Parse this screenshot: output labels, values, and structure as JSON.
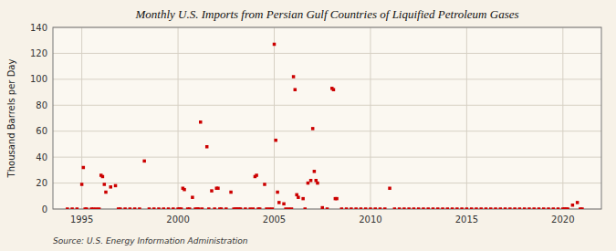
{
  "chart_data": {
    "type": "scatter",
    "title": "Monthly U.S. Imports from Persian Gulf Countries of Liquified Petroleum Gases",
    "y_label": "Thousand Barrels per Day",
    "annotations": [
      "Source: U.S. Energy Information Administration"
    ],
    "color": "#cc0000",
    "marker": "square",
    "grid": true,
    "xlim": [
      1993.5,
      2022.0
    ],
    "ylim": [
      0,
      140
    ],
    "xticks": [
      1995,
      2000,
      2005,
      2010,
      2015,
      2020
    ],
    "yticks": [
      0,
      20,
      40,
      60,
      80,
      100,
      120,
      140
    ],
    "x": [
      1994.25,
      1994.5,
      1994.75,
      1995.0,
      1995.08,
      1995.17,
      1995.25,
      1995.5,
      1995.6,
      1995.75,
      1995.9,
      1996.0,
      1996.08,
      1996.17,
      1996.25,
      1996.5,
      1996.75,
      1996.9,
      1997.0,
      1997.25,
      1997.5,
      1997.75,
      1998.0,
      1998.25,
      1998.5,
      1998.75,
      1999.0,
      1999.25,
      1999.5,
      1999.75,
      2000.0,
      2000.08,
      2000.17,
      2000.25,
      2000.33,
      2000.5,
      2000.6,
      2000.75,
      2000.9,
      2001.0,
      2001.08,
      2001.17,
      2001.25,
      2001.5,
      2001.6,
      2001.75,
      2001.9,
      2002.0,
      2002.08,
      2002.17,
      2002.25,
      2002.5,
      2002.75,
      2002.9,
      2003.0,
      2003.08,
      2003.17,
      2003.25,
      2003.5,
      2003.75,
      2003.9,
      2004.0,
      2004.08,
      2004.17,
      2004.25,
      2004.5,
      2004.6,
      2004.75,
      2004.9,
      2005.0,
      2005.08,
      2005.17,
      2005.25,
      2005.5,
      2005.6,
      2005.75,
      2005.9,
      2006.0,
      2006.08,
      2006.17,
      2006.25,
      2006.5,
      2006.6,
      2006.75,
      2006.9,
      2007.0,
      2007.08,
      2007.17,
      2007.25,
      2007.5,
      2007.75,
      2008.0,
      2008.08,
      2008.17,
      2008.25,
      2008.5,
      2008.75,
      2009.0,
      2009.25,
      2009.5,
      2009.75,
      2010.0,
      2010.25,
      2010.5,
      2010.75,
      2011.0,
      2011.25,
      2011.5,
      2011.75,
      2012.0,
      2012.25,
      2012.5,
      2012.75,
      2013.0,
      2013.25,
      2013.5,
      2013.75,
      2014.0,
      2014.25,
      2014.5,
      2014.75,
      2015.0,
      2015.25,
      2015.5,
      2015.75,
      2016.0,
      2016.25,
      2016.5,
      2016.75,
      2017.0,
      2017.25,
      2017.5,
      2017.75,
      2018.0,
      2018.25,
      2018.5,
      2018.75,
      2019.0,
      2019.25,
      2019.5,
      2019.75,
      2020.0,
      2020.08,
      2020.17,
      2020.25,
      2020.5,
      2020.75,
      2020.9,
      2021.0
    ],
    "values": [
      0,
      0,
      0,
      19,
      32,
      0,
      0,
      0,
      0,
      0,
      0,
      26,
      25,
      19,
      13,
      17,
      18,
      0,
      0,
      0,
      0,
      0,
      0,
      37,
      0,
      0,
      0,
      0,
      0,
      0,
      0,
      0,
      0,
      16,
      15,
      0,
      0,
      9,
      0,
      0,
      0,
      67,
      0,
      48,
      0,
      14,
      0,
      16,
      16,
      0,
      0,
      0,
      13,
      0,
      0,
      0,
      0,
      0,
      0,
      0,
      0,
      25,
      26,
      0,
      0,
      19,
      0,
      0,
      0,
      127,
      53,
      13,
      5,
      4,
      0,
      0,
      0,
      102,
      92,
      11,
      9,
      8,
      0,
      20,
      22,
      62,
      29,
      22,
      20,
      1,
      0,
      93,
      92,
      8,
      8,
      0,
      0,
      0,
      0,
      0,
      0,
      0,
      0,
      0,
      0,
      16,
      0,
      0,
      0,
      0,
      0,
      0,
      0,
      0,
      0,
      0,
      0,
      0,
      0,
      0,
      0,
      0,
      0,
      0,
      0,
      0,
      0,
      0,
      0,
      0,
      0,
      0,
      0,
      0,
      0,
      0,
      0,
      0,
      0,
      0,
      0,
      0,
      0,
      0,
      0,
      3,
      5,
      0,
      0
    ]
  }
}
